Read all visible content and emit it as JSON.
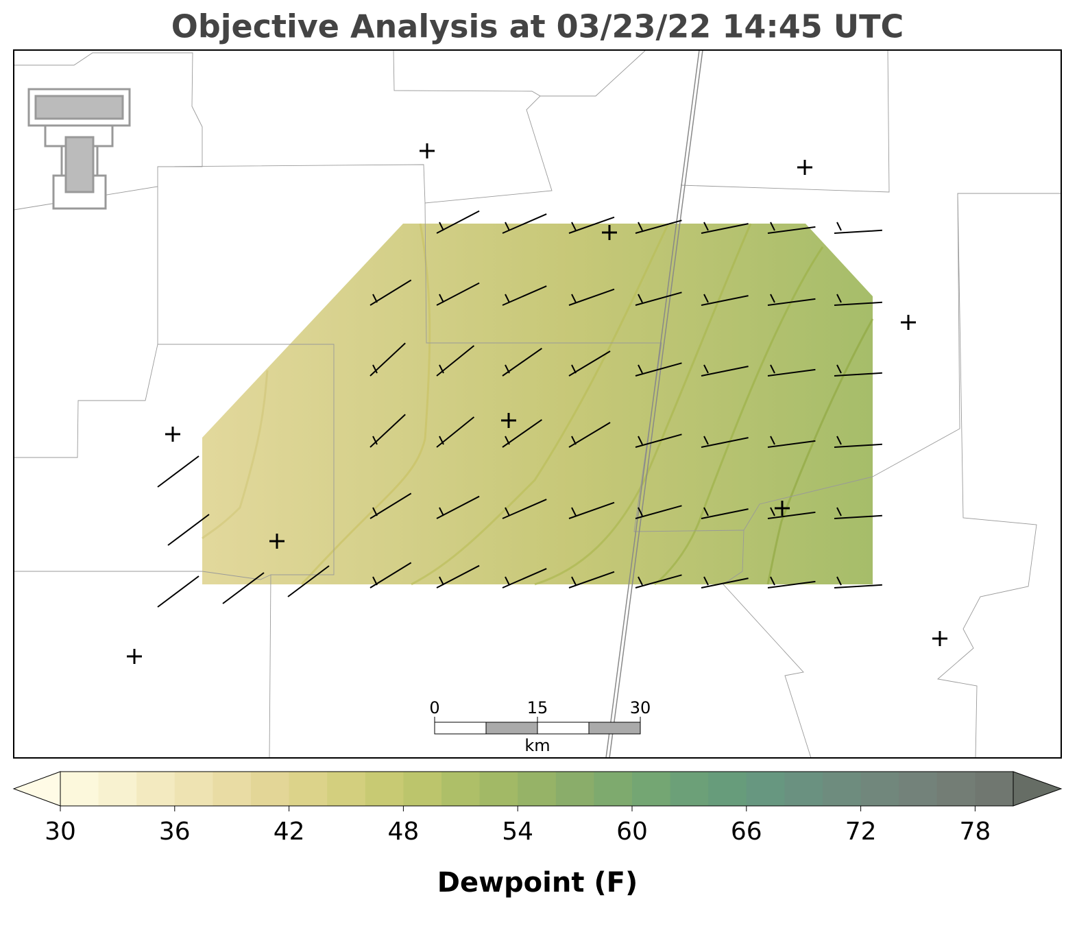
{
  "title": "Objective Analysis at 03/23/22 14:45 UTC",
  "scale_bar": {
    "ticks": [
      0,
      15,
      30
    ],
    "unit": "km"
  },
  "colorbar": {
    "label": "Dewpoint (F)",
    "range": [
      30,
      80
    ],
    "step": 2,
    "ticks": [
      30,
      36,
      42,
      48,
      54,
      60,
      66,
      72,
      78
    ],
    "colors": [
      "#fcf8dc",
      "#f8f2d0",
      "#f3eac0",
      "#eee3b2",
      "#e9dca4",
      "#e3d697",
      "#dcd38a",
      "#d3cf7e",
      "#c8ca73",
      "#bcc56c",
      "#aebf68",
      "#a2b966",
      "#96b367",
      "#8aad6a",
      "#7eaa6e",
      "#74a673",
      "#6ca078",
      "#679c7b",
      "#679780",
      "#6a9180",
      "#6e8c7e",
      "#71877c",
      "#73827a",
      "#737d75",
      "#707770"
    ],
    "under_color": "#fffbe6",
    "over_color": "#666d65"
  }
}
